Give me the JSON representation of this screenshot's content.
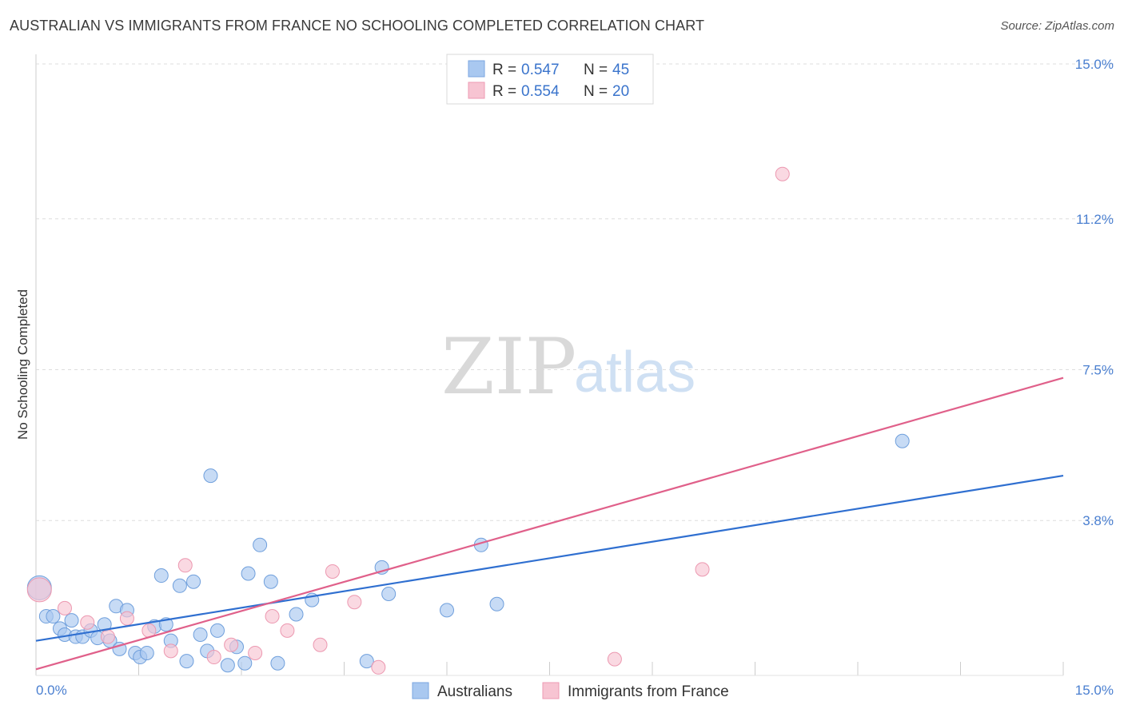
{
  "header": {
    "title": "AUSTRALIAN VS IMMIGRANTS FROM FRANCE NO SCHOOLING COMPLETED CORRELATION CHART",
    "source": "Source: ZipAtlas.com"
  },
  "watermark": {
    "zip": "ZIP",
    "atlas": "atlas"
  },
  "chart_data": {
    "type": "scatter",
    "title": "AUSTRALIAN VS IMMIGRANTS FROM FRANCE NO SCHOOLING COMPLETED CORRELATION CHART",
    "xlabel": "",
    "ylabel": "No Schooling Completed",
    "xlim": [
      0,
      15
    ],
    "ylim": [
      0,
      15
    ],
    "x_ticks": [
      0,
      15
    ],
    "x_tick_labels": [
      "0.0%",
      "15.0%"
    ],
    "y_ticks": [
      3.8,
      7.5,
      11.2,
      15.0
    ],
    "y_tick_labels": [
      "3.8%",
      "7.5%",
      "11.2%",
      "15.0%"
    ],
    "grid": true,
    "legend_position": "top-center",
    "legend": [
      {
        "label": "R = ",
        "r": "0.547",
        "n_label": "N = ",
        "n": "45",
        "color": "#a9c8f0",
        "edge": "#7aa6e0"
      },
      {
        "label": "R = ",
        "r": "0.554",
        "n_label": "N = ",
        "n": "20",
        "color": "#f7c4d2",
        "edge": "#ee9ab3"
      }
    ],
    "series": [
      {
        "name": "Australians",
        "color": "#a9c8f0",
        "edge": "#6f9fdc",
        "line_color": "#2f6fd0",
        "trend": {
          "x": [
            0,
            15
          ],
          "y": [
            0.85,
            4.9
          ]
        },
        "points": [
          {
            "x": 0.05,
            "y": 2.15,
            "big": true
          },
          {
            "x": 0.15,
            "y": 1.45
          },
          {
            "x": 0.25,
            "y": 1.45
          },
          {
            "x": 0.35,
            "y": 1.15
          },
          {
            "x": 0.42,
            "y": 1.0
          },
          {
            "x": 0.52,
            "y": 1.35
          },
          {
            "x": 0.58,
            "y": 0.95
          },
          {
            "x": 0.68,
            "y": 0.95
          },
          {
            "x": 0.8,
            "y": 1.1
          },
          {
            "x": 0.9,
            "y": 0.92
          },
          {
            "x": 1.0,
            "y": 1.25
          },
          {
            "x": 1.08,
            "y": 0.85
          },
          {
            "x": 1.17,
            "y": 1.7
          },
          {
            "x": 1.22,
            "y": 0.65
          },
          {
            "x": 1.33,
            "y": 1.6
          },
          {
            "x": 1.45,
            "y": 0.55
          },
          {
            "x": 1.52,
            "y": 0.45
          },
          {
            "x": 1.62,
            "y": 0.55
          },
          {
            "x": 1.73,
            "y": 1.2
          },
          {
            "x": 1.83,
            "y": 2.45
          },
          {
            "x": 1.9,
            "y": 1.25
          },
          {
            "x": 1.97,
            "y": 0.85
          },
          {
            "x": 2.1,
            "y": 2.2
          },
          {
            "x": 2.2,
            "y": 0.35
          },
          {
            "x": 2.3,
            "y": 2.3
          },
          {
            "x": 2.4,
            "y": 1.0
          },
          {
            "x": 2.5,
            "y": 0.6
          },
          {
            "x": 2.55,
            "y": 4.9
          },
          {
            "x": 2.65,
            "y": 1.1
          },
          {
            "x": 2.8,
            "y": 0.25
          },
          {
            "x": 2.93,
            "y": 0.7
          },
          {
            "x": 3.05,
            "y": 0.3
          },
          {
            "x": 3.1,
            "y": 2.5
          },
          {
            "x": 3.27,
            "y": 3.2
          },
          {
            "x": 3.43,
            "y": 2.3
          },
          {
            "x": 3.53,
            "y": 0.3
          },
          {
            "x": 3.8,
            "y": 1.5
          },
          {
            "x": 4.03,
            "y": 1.85
          },
          {
            "x": 4.83,
            "y": 0.35
          },
          {
            "x": 5.05,
            "y": 2.65
          },
          {
            "x": 5.15,
            "y": 2.0
          },
          {
            "x": 6.0,
            "y": 1.6
          },
          {
            "x": 6.5,
            "y": 3.2
          },
          {
            "x": 6.73,
            "y": 1.75
          },
          {
            "x": 12.65,
            "y": 5.75
          }
        ]
      },
      {
        "name": "Immigrants from France",
        "color": "#f7c4d2",
        "edge": "#ec98b0",
        "line_color": "#e0608a",
        "trend": {
          "x": [
            0,
            15
          ],
          "y": [
            0.15,
            7.3
          ]
        },
        "points": [
          {
            "x": 0.05,
            "y": 2.1,
            "big": true
          },
          {
            "x": 0.42,
            "y": 1.65
          },
          {
            "x": 0.75,
            "y": 1.3
          },
          {
            "x": 1.05,
            "y": 0.95
          },
          {
            "x": 1.33,
            "y": 1.4
          },
          {
            "x": 1.65,
            "y": 1.1
          },
          {
            "x": 1.97,
            "y": 0.6
          },
          {
            "x": 2.18,
            "y": 2.7
          },
          {
            "x": 2.6,
            "y": 0.45
          },
          {
            "x": 2.85,
            "y": 0.75
          },
          {
            "x": 3.2,
            "y": 0.55
          },
          {
            "x": 3.45,
            "y": 1.45
          },
          {
            "x": 3.67,
            "y": 1.1
          },
          {
            "x": 4.15,
            "y": 0.75
          },
          {
            "x": 4.33,
            "y": 2.55
          },
          {
            "x": 4.65,
            "y": 1.8
          },
          {
            "x": 5.0,
            "y": 0.2
          },
          {
            "x": 8.45,
            "y": 0.4
          },
          {
            "x": 9.73,
            "y": 2.6
          },
          {
            "x": 10.9,
            "y": 12.3
          }
        ]
      }
    ]
  }
}
